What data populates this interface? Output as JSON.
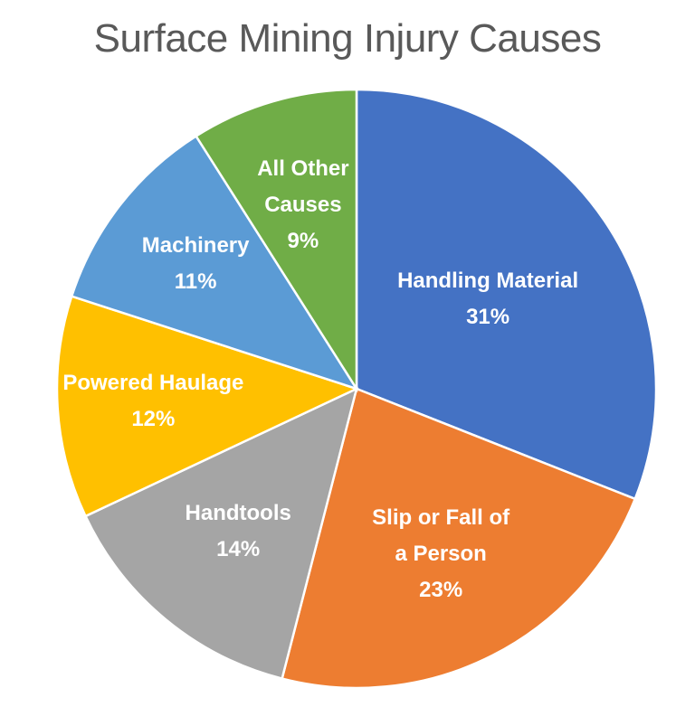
{
  "chart_data": {
    "type": "pie",
    "title": "Surface Mining Injury Causes",
    "categories": [
      "Handling Material",
      "Slip or Fall of a Person",
      "Handtools",
      "Powered Haulage",
      "Machinery",
      "All Other Causes"
    ],
    "values": [
      31,
      23,
      14,
      12,
      11,
      9
    ],
    "unit": "%",
    "colors": [
      "#4472C4",
      "#ED7D31",
      "#A5A5A5",
      "#FFC000",
      "#5B9BD5",
      "#70AD47"
    ],
    "start_angle": "12 o'clock, clockwise",
    "legend": "none (data labels inside slices)",
    "slices": [
      {
        "label_lines": [
          "Handling Material",
          "31%"
        ],
        "value": 31,
        "color": "#4472C4"
      },
      {
        "label_lines": [
          "Slip or Fall of",
          "a Person",
          "23%"
        ],
        "value": 23,
        "color": "#ED7D31"
      },
      {
        "label_lines": [
          "Handtools",
          "14%"
        ],
        "value": 14,
        "color": "#A5A5A5"
      },
      {
        "label_lines": [
          "Powered Haulage",
          "12%"
        ],
        "value": 12,
        "color": "#FFC000"
      },
      {
        "label_lines": [
          "Machinery",
          "11%"
        ],
        "value": 11,
        "color": "#5B9BD5"
      },
      {
        "label_lines": [
          "All Other",
          "Causes",
          "9%"
        ],
        "value": 9,
        "color": "#70AD47"
      }
    ]
  }
}
